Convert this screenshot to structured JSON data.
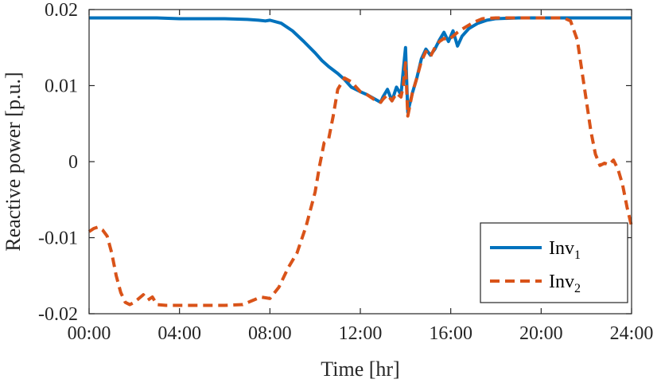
{
  "chart_data": {
    "type": "line",
    "title": "",
    "xlabel": "Time [hr]",
    "ylabel": "Reactive power [p.u.]",
    "xlim": [
      0,
      24
    ],
    "ylim": [
      -0.02,
      0.02
    ],
    "xticks": [
      0,
      4,
      8,
      12,
      16,
      20,
      24
    ],
    "xtick_labels": [
      "00:00",
      "04:00",
      "08:00",
      "12:00",
      "16:00",
      "20:00",
      "24:00"
    ],
    "yticks": [
      -0.02,
      -0.01,
      0,
      0.01,
      0.02
    ],
    "ytick_labels": [
      "-0.02",
      "-0.01",
      "0",
      "0.01",
      "0.02"
    ],
    "grid": false,
    "legend_position": "bottom-right",
    "series": [
      {
        "name": "Inv",
        "subscript": "1",
        "color": "#0072BD",
        "style": "solid",
        "x": [
          0,
          1,
          2,
          3,
          4,
          5,
          6,
          7,
          7.5,
          7.8,
          8,
          8.5,
          9,
          9.5,
          10,
          10.3,
          10.6,
          11,
          11.3,
          11.6,
          12,
          12.3,
          12.6,
          12.9,
          13.0,
          13.2,
          13.4,
          13.6,
          13.8,
          13.9,
          14.0,
          14.1,
          14.3,
          14.5,
          14.7,
          14.9,
          15.1,
          15.3,
          15.5,
          15.7,
          15.9,
          16.1,
          16.3,
          16.5,
          16.8,
          17.2,
          17.6,
          18,
          19,
          20,
          21,
          22,
          23,
          24
        ],
        "y": [
          0.0189,
          0.0189,
          0.0189,
          0.0189,
          0.0188,
          0.0188,
          0.0188,
          0.0187,
          0.0186,
          0.0185,
          0.0186,
          0.0182,
          0.0172,
          0.0158,
          0.0143,
          0.0133,
          0.0125,
          0.0116,
          0.0108,
          0.0098,
          0.0092,
          0.0088,
          0.0083,
          0.0078,
          0.0085,
          0.0095,
          0.008,
          0.0098,
          0.0088,
          0.012,
          0.015,
          0.0065,
          0.009,
          0.011,
          0.0135,
          0.0148,
          0.014,
          0.0148,
          0.016,
          0.017,
          0.0158,
          0.0172,
          0.0152,
          0.0165,
          0.0175,
          0.0182,
          0.0186,
          0.0188,
          0.0189,
          0.0189,
          0.0189,
          0.0189,
          0.0189,
          0.0189
        ]
      },
      {
        "name": "Inv",
        "subscript": "2",
        "color": "#D95319",
        "style": "dashed",
        "x": [
          0,
          0.2,
          0.4,
          0.6,
          0.8,
          1.0,
          1.2,
          1.4,
          1.6,
          1.8,
          2.0,
          2.2,
          2.4,
          2.6,
          2.8,
          3.0,
          3.4,
          4,
          5,
          6,
          6.8,
          7.2,
          7.6,
          8.0,
          8.4,
          8.8,
          9.2,
          9.6,
          10.0,
          10.2,
          10.4,
          10.6,
          10.8,
          11.0,
          11.3,
          11.6,
          12.0,
          12.3,
          12.6,
          12.9,
          13.0,
          13.2,
          13.4,
          13.6,
          13.8,
          13.9,
          14.0,
          14.1,
          14.3,
          14.5,
          14.7,
          14.9,
          15.1,
          15.3,
          15.5,
          15.7,
          15.9,
          16.1,
          16.3,
          16.6,
          17.0,
          17.4,
          18,
          19,
          20,
          21,
          21.3,
          21.6,
          21.8,
          22.0,
          22.2,
          22.4,
          22.6,
          22.8,
          23.0,
          23.2,
          23.4,
          23.6,
          23.8,
          24.0
        ],
        "y": [
          -0.0092,
          -0.0088,
          -0.0086,
          -0.009,
          -0.0098,
          -0.012,
          -0.015,
          -0.0172,
          -0.0185,
          -0.0188,
          -0.0185,
          -0.018,
          -0.0175,
          -0.0182,
          -0.0178,
          -0.0188,
          -0.0189,
          -0.0189,
          -0.0189,
          -0.0189,
          -0.0188,
          -0.0183,
          -0.0178,
          -0.018,
          -0.0165,
          -0.014,
          -0.012,
          -0.0085,
          -0.004,
          -0.0005,
          0.0025,
          0.003,
          0.006,
          0.0095,
          0.011,
          0.0105,
          0.0092,
          0.0088,
          0.0082,
          0.0078,
          0.0082,
          0.0088,
          0.008,
          0.009,
          0.0085,
          0.01,
          0.013,
          0.006,
          0.009,
          0.011,
          0.0132,
          0.0145,
          0.0138,
          0.015,
          0.0158,
          0.0162,
          0.016,
          0.0165,
          0.017,
          0.0176,
          0.0183,
          0.0188,
          0.0189,
          0.0189,
          0.0189,
          0.0189,
          0.0185,
          0.016,
          0.012,
          0.008,
          0.004,
          0.001,
          -0.0005,
          -0.0002,
          -0.0004,
          0.0002,
          -0.001,
          -0.003,
          -0.006,
          -0.0085
        ]
      }
    ]
  }
}
